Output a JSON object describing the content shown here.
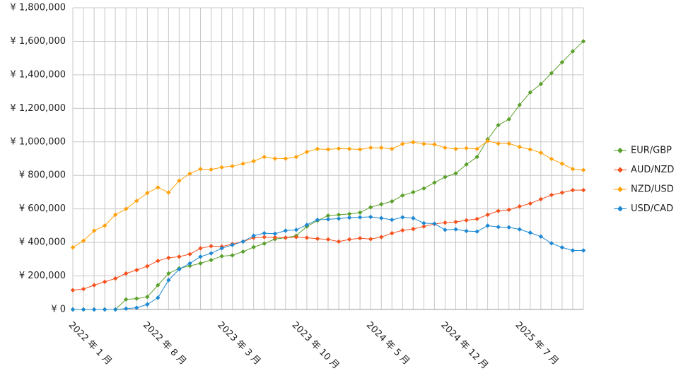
{
  "chart_data": {
    "type": "line",
    "categories": [
      "2022 年 1 月",
      null,
      null,
      null,
      null,
      null,
      null,
      "2022 年 8 月",
      null,
      null,
      null,
      null,
      null,
      null,
      "2023 年 3 月",
      null,
      null,
      null,
      null,
      null,
      null,
      "2023 年 10 月",
      null,
      null,
      null,
      null,
      null,
      null,
      "2024 年 5 月",
      null,
      null,
      null,
      null,
      null,
      null,
      "2024 年 12 月",
      null,
      null,
      null,
      null,
      null,
      null,
      "2025 年 7 月",
      null,
      null,
      null,
      null,
      null,
      null
    ],
    "series": [
      {
        "name": "EUR/GBP",
        "color": "#5aa02c",
        "values": [
          0,
          0,
          0,
          0,
          0,
          60000,
          65000,
          75000,
          145000,
          215000,
          245000,
          260000,
          275000,
          295000,
          318000,
          323000,
          345000,
          372000,
          393000,
          420000,
          428000,
          440000,
          495000,
          530000,
          560000,
          565000,
          570000,
          578000,
          610000,
          628000,
          645000,
          680000,
          700000,
          722000,
          757000,
          790000,
          812000,
          865000,
          910000,
          1015000,
          1100000,
          1135000,
          1220000,
          1295000,
          1345000,
          1410000,
          1475000,
          1540000,
          1600000
        ]
      },
      {
        "name": "AUD/NZD",
        "color": "#f4511e",
        "values": [
          115000,
          122000,
          145000,
          165000,
          185000,
          215000,
          235000,
          258000,
          290000,
          308000,
          315000,
          330000,
          365000,
          378000,
          375000,
          390000,
          405000,
          428000,
          432000,
          430000,
          428000,
          432000,
          428000,
          422000,
          418000,
          405000,
          418000,
          425000,
          420000,
          432000,
          455000,
          472000,
          480000,
          495000,
          510000,
          518000,
          522000,
          532000,
          540000,
          565000,
          588000,
          595000,
          615000,
          632000,
          658000,
          683000,
          697000,
          712000,
          712000
        ]
      },
      {
        "name": "NZD/USD",
        "color": "#ffa10a",
        "values": [
          370000,
          410000,
          470000,
          500000,
          565000,
          600000,
          648000,
          695000,
          728000,
          698000,
          768000,
          810000,
          838000,
          835000,
          848000,
          855000,
          870000,
          885000,
          910000,
          900000,
          900000,
          910000,
          940000,
          958000,
          955000,
          960000,
          958000,
          955000,
          965000,
          965000,
          958000,
          988000,
          998000,
          988000,
          985000,
          965000,
          958000,
          962000,
          958000,
          1005000,
          990000,
          990000,
          970000,
          955000,
          935000,
          898000,
          870000,
          838000,
          832000
        ]
      },
      {
        "name": "USD/CAD",
        "color": "#1e88d2",
        "values": [
          0,
          0,
          0,
          0,
          0,
          5000,
          10000,
          30000,
          70000,
          175000,
          240000,
          275000,
          315000,
          335000,
          365000,
          385000,
          405000,
          440000,
          455000,
          452000,
          470000,
          475000,
          505000,
          535000,
          538000,
          542000,
          548000,
          550000,
          552000,
          545000,
          535000,
          550000,
          545000,
          515000,
          512000,
          475000,
          478000,
          468000,
          465000,
          500000,
          492000,
          490000,
          478000,
          458000,
          435000,
          395000,
          370000,
          352000,
          352000
        ]
      }
    ],
    "ylim": [
      0,
      1800000
    ],
    "yticks": [
      {
        "value": 0,
        "label": "¥ 0"
      },
      {
        "value": 200000,
        "label": "¥ 200,000"
      },
      {
        "value": 400000,
        "label": "¥ 400,000"
      },
      {
        "value": 600000,
        "label": "¥ 600,000"
      },
      {
        "value": 800000,
        "label": "¥ 800,000"
      },
      {
        "value": 1000000,
        "label": "¥ 1,000,000"
      },
      {
        "value": 1200000,
        "label": "¥ 1,200,000"
      },
      {
        "value": 1400000,
        "label": "¥ 1,400,000"
      },
      {
        "value": 1600000,
        "label": "¥ 1,600,000"
      },
      {
        "value": 1800000,
        "label": "¥ 1,800,000"
      }
    ],
    "grid": true,
    "legend": "right"
  }
}
